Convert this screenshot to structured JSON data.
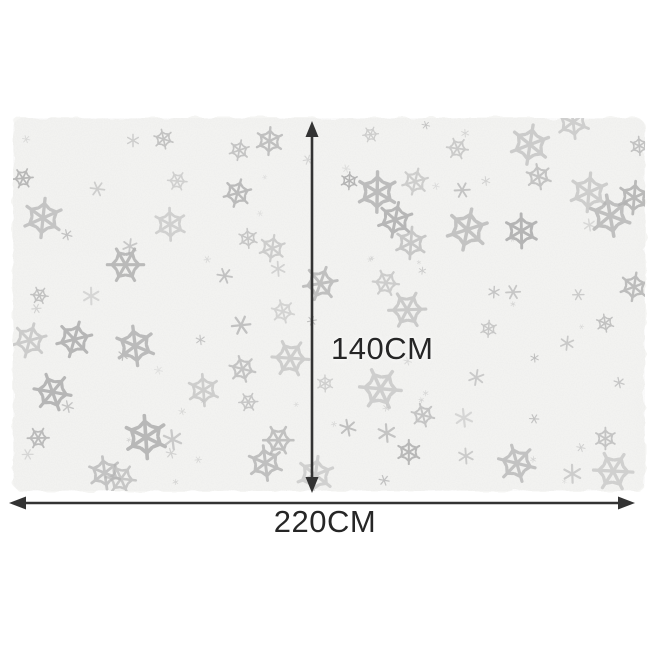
{
  "image": {
    "description_role": "product-dimension-diagram",
    "pattern_icon": "snowflake-pattern",
    "dimensions": {
      "height_label": "140CM",
      "width_label": "220CM"
    },
    "colors": {
      "background": "#ffffff",
      "fabric": "#f5f5f3",
      "snowflake": "#b2b2b2",
      "arrow": "#333333",
      "text": "#262626"
    }
  }
}
